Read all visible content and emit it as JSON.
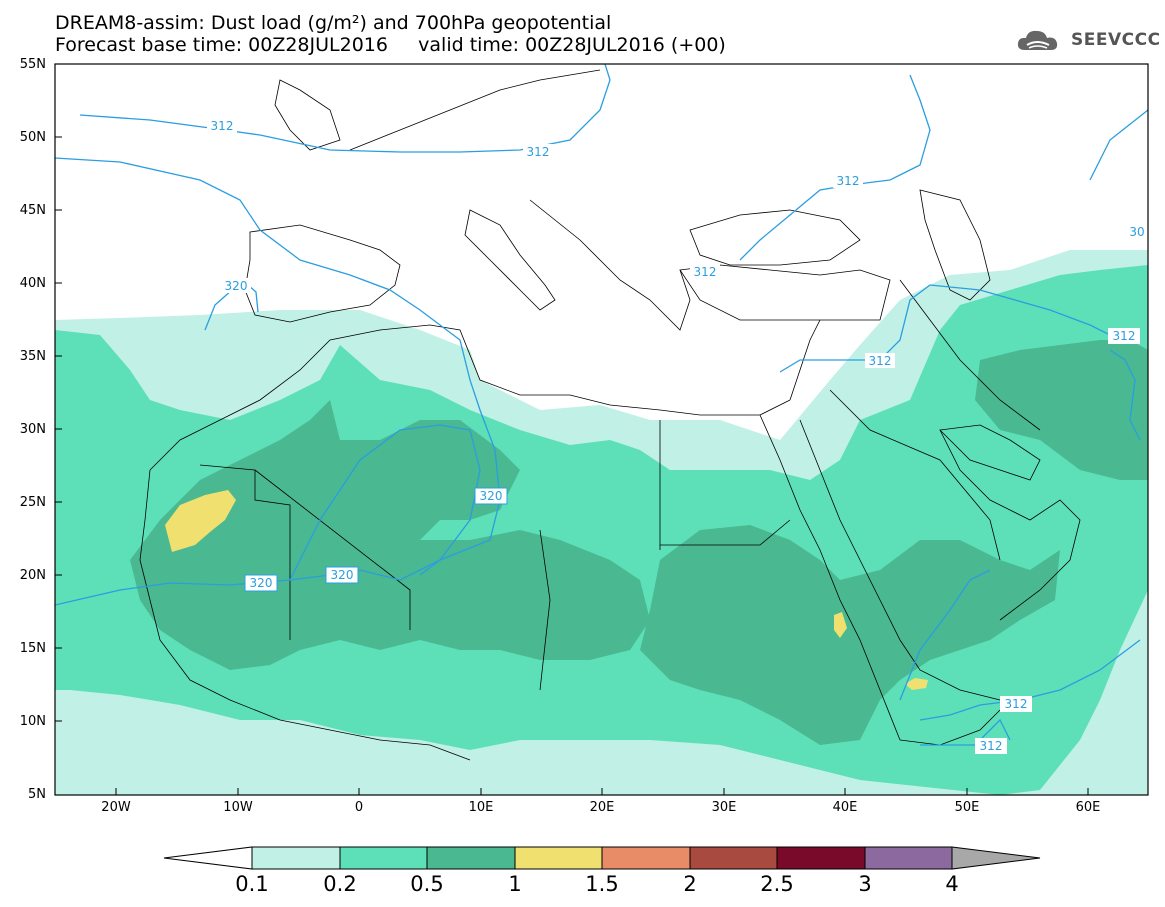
{
  "title": {
    "line1": "DREAM8-assim: Dust load (g/m²) and 700hPa geopotential",
    "line2": "Forecast base time: 00Z28JUL2016     valid time: 00Z28JUL2016 (+00)"
  },
  "logo": {
    "text": "SEEVCCC",
    "icon": "cloud-icon"
  },
  "axes": {
    "lat_labels": [
      "55N",
      "50N",
      "45N",
      "40N",
      "35N",
      "30N",
      "25N",
      "20N",
      "15N",
      "10N",
      "5N"
    ],
    "lon_labels": [
      "20W",
      "10W",
      "0",
      "10E",
      "20E",
      "30E",
      "40E",
      "50E",
      "60E"
    ]
  },
  "contours": {
    "labels": [
      "312",
      "312",
      "312",
      "320",
      "312",
      "312",
      "320",
      "320",
      "320",
      "312",
      "312",
      "312",
      "30"
    ]
  },
  "colorbar": {
    "labels": [
      "0.1",
      "0.2",
      "0.5",
      "1",
      "1.5",
      "2",
      "2.5",
      "3",
      "4"
    ],
    "colors": [
      "#c0f0e6",
      "#5de0b8",
      "#4ab890",
      "#f0e070",
      "#e88c68",
      "#a84a40",
      "#7a0a2a",
      "#8c6aa0",
      "#a8a8a8"
    ]
  },
  "palette": {
    "dust_low": "#c0f0e6",
    "dust_mid": "#5de0b8",
    "dust_high": "#4ab890",
    "dust_peak": "#f0e070",
    "contour": "#2a9ee0"
  }
}
